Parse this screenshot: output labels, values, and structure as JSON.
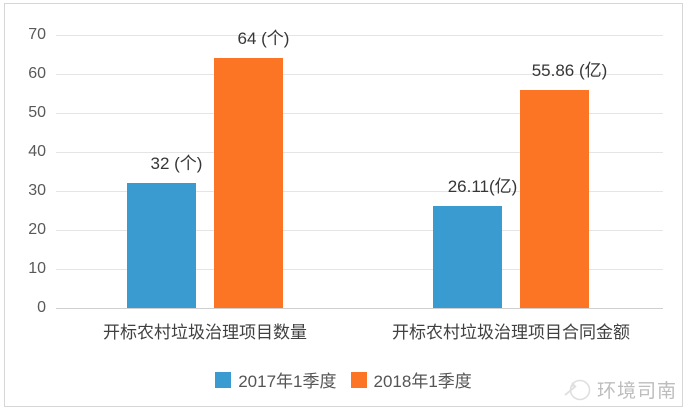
{
  "chart_data": {
    "type": "bar",
    "title": "",
    "xlabel": "",
    "ylabel": "",
    "categories": [
      "开标农村垃圾治理项目数量",
      "开标农村垃圾治理项目合同金额"
    ],
    "series": [
      {
        "name": "2017年1季度",
        "color": "#3A9BD1",
        "values": [
          32,
          26.11
        ],
        "value_labels": [
          "32 (个)",
          "26.11(亿)"
        ]
      },
      {
        "name": "2018年1季度",
        "color": "#FB7524",
        "values": [
          64,
          55.86
        ],
        "value_labels": [
          "64 (个)",
          "55.86 (亿)"
        ]
      }
    ],
    "ylim": [
      0,
      70
    ],
    "yticks": [
      0,
      10,
      20,
      30,
      40,
      50,
      60,
      70
    ],
    "grid": true,
    "legend_position": "bottom"
  },
  "watermark": {
    "logo": "compass-icon",
    "text": "环境司南"
  }
}
